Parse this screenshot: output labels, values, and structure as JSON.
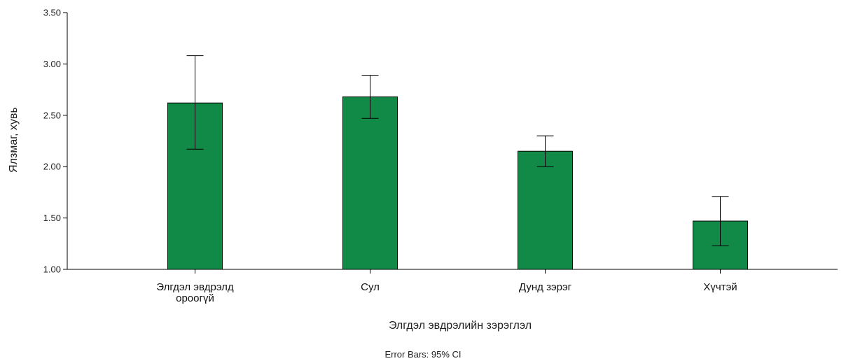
{
  "chart_data": {
    "type": "bar",
    "categories": [
      "Элгдэл эвдрэлд ороогүй",
      "Сул",
      "Дунд зэрэг",
      "Хүчтэй"
    ],
    "category_lines": [
      [
        "Элгдэл эвдрэлд",
        "ороогүй"
      ],
      [
        "Сул"
      ],
      [
        "Дунд зэрэг"
      ],
      [
        "Хүчтэй"
      ]
    ],
    "values": [
      2.62,
      2.68,
      2.15,
      1.47
    ],
    "ci_lower": [
      2.17,
      2.47,
      2.0,
      1.23
    ],
    "ci_upper": [
      3.08,
      2.89,
      2.3,
      1.71
    ],
    "ylim": [
      1.0,
      3.5
    ],
    "yticks": [
      "1.00",
      "1.50",
      "2.00",
      "2.50",
      "3.00",
      "3.50"
    ],
    "ylabel": "Ялзмаг, хувь",
    "xlabel": "Элгдэл эвдрэлийн зэрэглэл",
    "footnote": "Error Bars: 95% CI",
    "bar_color": "#128a47",
    "grid": false
  }
}
